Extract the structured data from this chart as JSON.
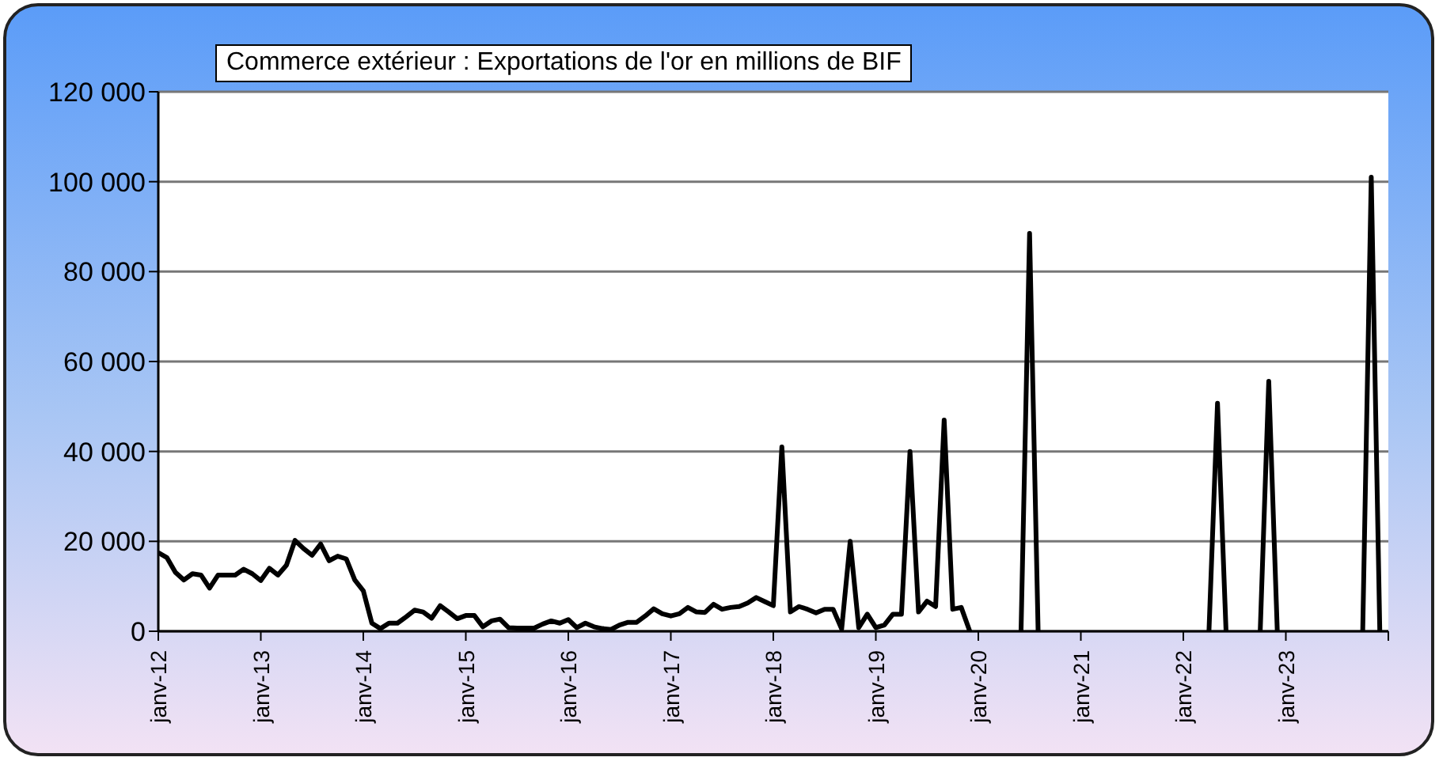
{
  "chart_data": {
    "type": "line",
    "title": "Commerce extérieur : Exportations de l'or en millions de BIF",
    "x": [
      "2012-01",
      "2012-02",
      "2012-03",
      "2012-04",
      "2012-05",
      "2012-06",
      "2012-07",
      "2012-08",
      "2012-09",
      "2012-10",
      "2012-11",
      "2012-12",
      "2013-01",
      "2013-02",
      "2013-03",
      "2013-04",
      "2013-05",
      "2013-06",
      "2013-07",
      "2013-08",
      "2013-09",
      "2013-10",
      "2013-11",
      "2013-12",
      "2014-01",
      "2014-02",
      "2014-03",
      "2014-04",
      "2014-05",
      "2014-06",
      "2014-07",
      "2014-08",
      "2014-09",
      "2014-10",
      "2014-11",
      "2014-12",
      "2015-01",
      "2015-02",
      "2015-03",
      "2015-04",
      "2015-05",
      "2015-06",
      "2015-07",
      "2015-08",
      "2015-09",
      "2015-10",
      "2015-11",
      "2015-12",
      "2016-01",
      "2016-02",
      "2016-03",
      "2016-04",
      "2016-05",
      "2016-06",
      "2016-07",
      "2016-08",
      "2016-09",
      "2016-10",
      "2016-11",
      "2016-12",
      "2017-01",
      "2017-02",
      "2017-03",
      "2017-04",
      "2017-05",
      "2017-06",
      "2017-07",
      "2017-08",
      "2017-09",
      "2017-10",
      "2017-11",
      "2017-12",
      "2018-01",
      "2018-02",
      "2018-03",
      "2018-04",
      "2018-05",
      "2018-06",
      "2018-07",
      "2018-08",
      "2018-09",
      "2018-10",
      "2018-11",
      "2018-12",
      "2019-01",
      "2019-02",
      "2019-03",
      "2019-04",
      "2019-05",
      "2019-06",
      "2019-07",
      "2019-08",
      "2019-09",
      "2019-10",
      "2019-11",
      "2019-12",
      "2020-01",
      "2020-02",
      "2020-03",
      "2020-04",
      "2020-05",
      "2020-06",
      "2020-07",
      "2020-08",
      "2020-09",
      "2020-10",
      "2020-11",
      "2020-12",
      "2021-01",
      "2021-02",
      "2021-03",
      "2021-04",
      "2021-05",
      "2021-06",
      "2021-07",
      "2021-08",
      "2021-09",
      "2021-10",
      "2021-11",
      "2021-12",
      "2022-01",
      "2022-02",
      "2022-03",
      "2022-04",
      "2022-05",
      "2022-06",
      "2022-07",
      "2022-08",
      "2022-09",
      "2022-10",
      "2022-11",
      "2022-12",
      "2023-01",
      "2023-02",
      "2023-03",
      "2023-04",
      "2023-05",
      "2023-06",
      "2023-07",
      "2023-08",
      "2023-09",
      "2023-10",
      "2023-11",
      "2023-12"
    ],
    "series": [
      {
        "color": "#000000",
        "values": [
          17500,
          16400,
          13100,
          11400,
          12800,
          12500,
          9600,
          12500,
          12500,
          12500,
          13800,
          12800,
          11300,
          14000,
          12500,
          14700,
          20200,
          18400,
          16900,
          19400,
          15700,
          16700,
          16100,
          11400,
          9000,
          1800,
          600,
          1800,
          1800,
          3200,
          4700,
          4300,
          2900,
          5700,
          4300,
          2800,
          3500,
          3500,
          1000,
          2300,
          2700,
          800,
          700,
          700,
          700,
          1600,
          2300,
          1800,
          2600,
          800,
          1800,
          1000,
          600,
          400,
          1400,
          2000,
          2000,
          3400,
          5000,
          3900,
          3400,
          3900,
          5300,
          4300,
          4200,
          6000,
          4900,
          5300,
          5500,
          6300,
          7500,
          6600,
          5700,
          41000,
          4300,
          5500,
          4900,
          4100,
          4900,
          4900,
          500,
          20000,
          800,
          3800,
          800,
          1400,
          3800,
          3800,
          40000,
          4300,
          6700,
          5500,
          47000,
          4900,
          5300,
          0,
          null,
          null,
          null,
          null,
          null,
          0,
          88500,
          0,
          null,
          null,
          null,
          null,
          null,
          null,
          null,
          null,
          null,
          null,
          null,
          null,
          null,
          null,
          null,
          null,
          null,
          null,
          null,
          0,
          50700,
          0,
          null,
          null,
          null,
          0,
          55600,
          0,
          null,
          null,
          null,
          null,
          null,
          null,
          null,
          null,
          null,
          0,
          101000,
          0
        ]
      }
    ],
    "xlim": [
      "2012-01",
      "2024-01"
    ],
    "xticks": [
      {
        "value": "2012-01",
        "label": "janv-12"
      },
      {
        "value": "2013-01",
        "label": "janv-13"
      },
      {
        "value": "2014-01",
        "label": "janv-14"
      },
      {
        "value": "2015-01",
        "label": "janv-15"
      },
      {
        "value": "2016-01",
        "label": "janv-16"
      },
      {
        "value": "2017-01",
        "label": "janv-17"
      },
      {
        "value": "2018-01",
        "label": "janv-18"
      },
      {
        "value": "2019-01",
        "label": "janv-19"
      },
      {
        "value": "2020-01",
        "label": "janv-20"
      },
      {
        "value": "2021-01",
        "label": "janv-21"
      },
      {
        "value": "2022-01",
        "label": "janv-22"
      },
      {
        "value": "2023-01",
        "label": "janv-23"
      },
      {
        "value": "2024-01",
        "label": null
      }
    ],
    "ylim": [
      0,
      120000
    ],
    "yticks": [
      0,
      {
        "value": 20000,
        "label": "20 000"
      },
      {
        "value": 40000,
        "label": "40 000"
      },
      {
        "value": 60000,
        "label": "60 000"
      },
      {
        "value": 80000,
        "label": "80 000"
      },
      {
        "value": 100000,
        "label": "100 000"
      },
      {
        "value": 120000,
        "label": "120 000"
      }
    ],
    "grid": "y",
    "marker": "none",
    "line_style": "solid"
  }
}
